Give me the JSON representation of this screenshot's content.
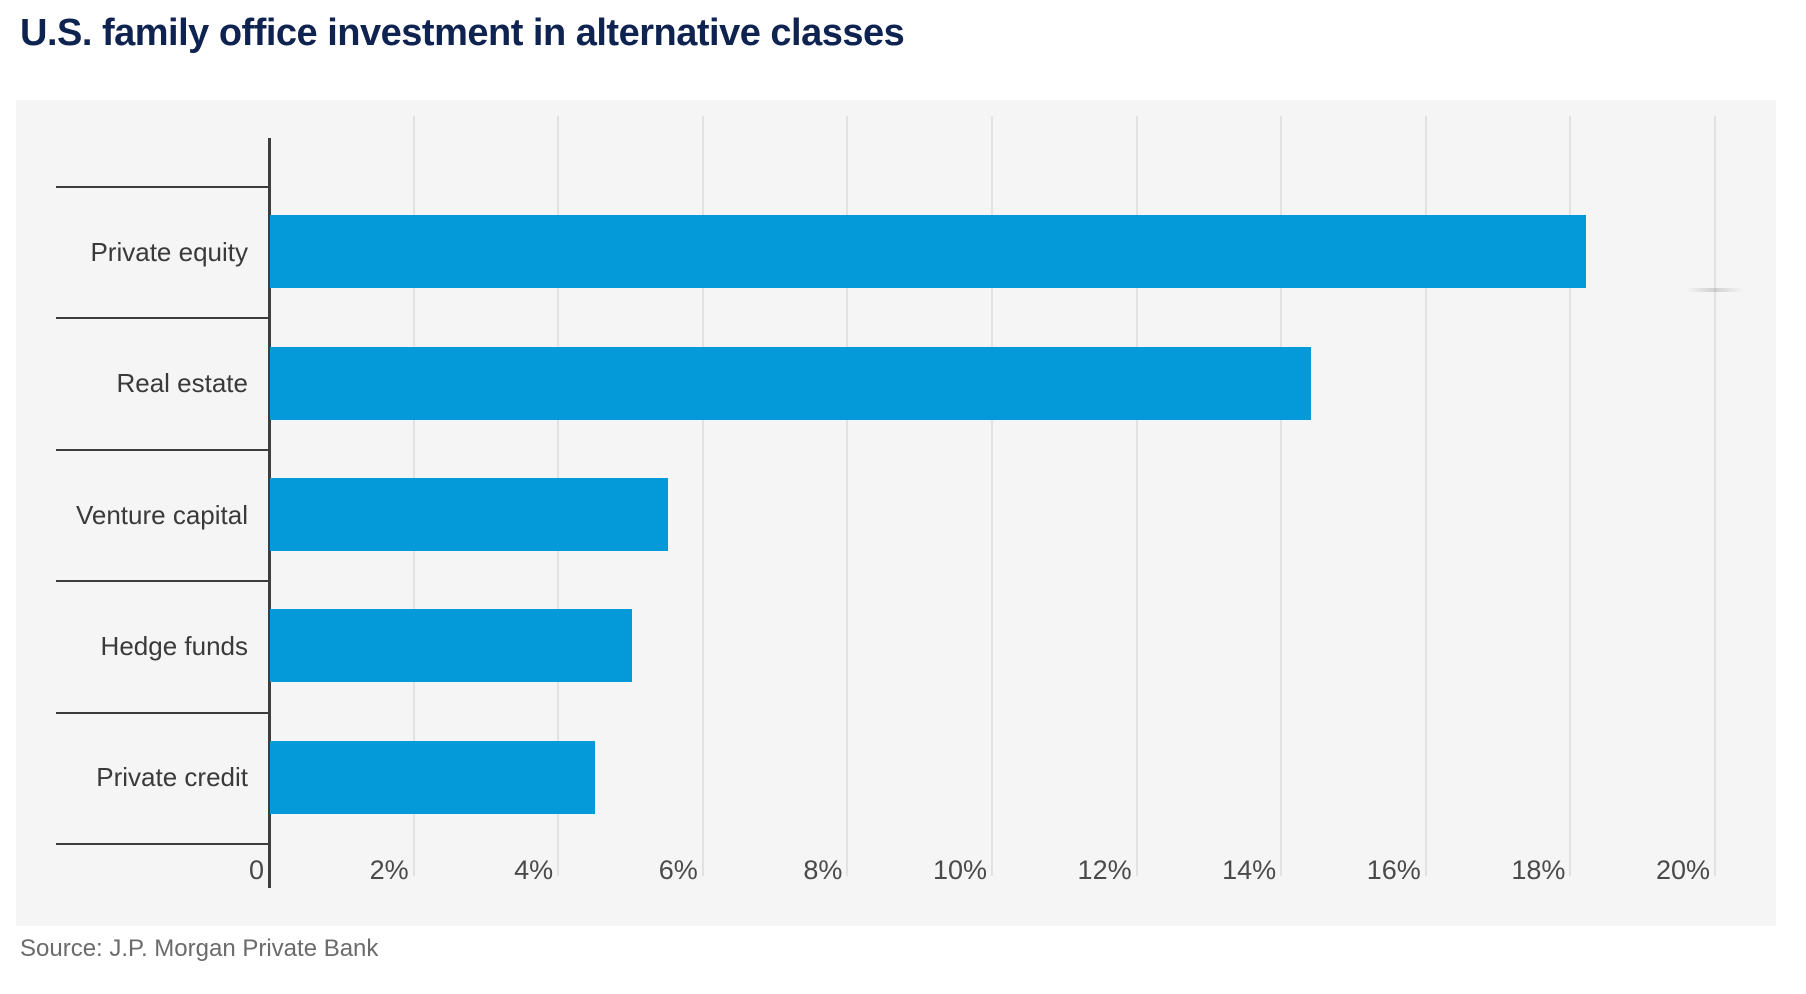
{
  "title": "U.S. family office investment in alternative classes",
  "source": "Source: J.P. Morgan Private Bank",
  "chart_data": {
    "type": "bar",
    "orientation": "horizontal",
    "title": "U.S. family office investment in alternative classes",
    "categories": [
      "Private equity",
      "Real estate",
      "Venture capital",
      "Hedge funds",
      "Private credit"
    ],
    "values": [
      18.2,
      14.4,
      5.5,
      5.0,
      4.5
    ],
    "unit": "%",
    "xlabel": "",
    "ylabel": "",
    "x_axis": {
      "min": 0,
      "max": 20,
      "tick_values": [
        0,
        2,
        4,
        6,
        8,
        10,
        12,
        14,
        16,
        18,
        20
      ],
      "tick_labels": [
        "0",
        "2%",
        "4%",
        "6%",
        "8%",
        "10%",
        "12%",
        "14%",
        "16%",
        "18%",
        "20%"
      ]
    },
    "grid": true,
    "legend": false
  },
  "colors": {
    "page_bg": "#ffffff",
    "title": "#0f2350",
    "bar": "#0499d8",
    "plot_bg": "#f5f5f5",
    "grid": "#e2e2e2",
    "axis": "#3d3d3d",
    "separator": "#3d3d3d",
    "category_label": "#3a3a3a",
    "tick_label": "#4a4a4a",
    "source": "#6b6b6b"
  }
}
